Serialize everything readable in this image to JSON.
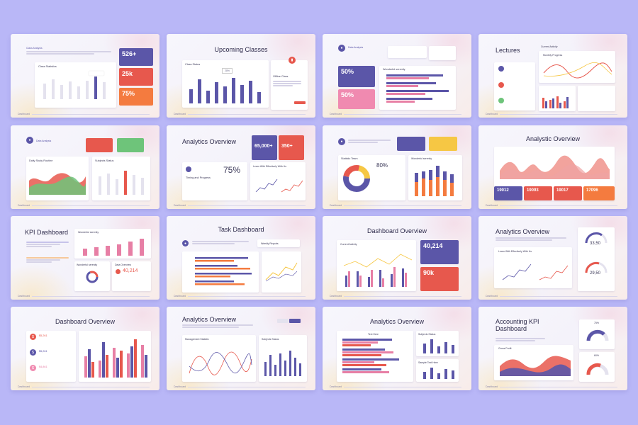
{
  "slides": {
    "s1": {
      "header_small": "Class Analysis",
      "chart_title": "Class Statistics",
      "stat1": "526+",
      "stat2": "25k",
      "stat3": "75%",
      "footer": "Dashboard"
    },
    "s2": {
      "title": "Upcoming Classes",
      "chart_title": "Class Status",
      "badge": "28%",
      "side_title": "Offline Class",
      "footer": "Dashboard"
    },
    "s3": {
      "header_small": "Data Analysis",
      "stat1": "50%",
      "stat2": "50%",
      "chart_title": "Wonderful serenity",
      "footer": "Dashboard"
    },
    "s4": {
      "title": "Lectures",
      "side_title": "Current Activity",
      "chart_title": "Monthly Progress",
      "footer": "Dashboard"
    },
    "s5": {
      "header_small": "Data Analysis",
      "chart1_title": "Daily Study Routine",
      "chart2_title": "Subjects Status",
      "footer": "Dashboard"
    },
    "s6": {
      "title": "Analytics Overview",
      "stat1": "65,000+",
      "stat2": "350+",
      "big": "75%",
      "sub_title": "Timing and Progress",
      "chart_title": "Learn With Effectively With Us",
      "footer": "Dashboard"
    },
    "s7": {
      "chart1_title": "Statistic Team",
      "percent": "80%",
      "chart2_title": "Wonderful serenity",
      "footer": "Dashboard"
    },
    "s8": {
      "title": "Analystic Overview",
      "stat1": "19012",
      "stat2": "19093",
      "stat3": "19017",
      "stat4": "17096",
      "footer": "Dashboard"
    },
    "s9": {
      "title": "KPI Dashboard",
      "chart1_title": "Wonderful serenity",
      "chart2_title": "Wonderful serenity",
      "chart3_title": "Data Overview",
      "stat": "40,214",
      "footer": "Dashboard"
    },
    "s10": {
      "title": "Task Dashboard",
      "side_title": "Weekly Reports",
      "footer": "Dashboard"
    },
    "s11": {
      "title": "Dashboard Overview",
      "chart_title": "Current Activity",
      "stat1": "40,214",
      "stat2": "90k",
      "footer": "Dashboard"
    },
    "s12": {
      "title": "Analytics Overview",
      "chart_title": "Learn With Effectively With Us",
      "g1": "33,50",
      "g2": "29,50",
      "footer": "Dashboard"
    },
    "s13": {
      "title": "Dashboard Overview",
      "v1": "$5,261",
      "v2": "$5,261",
      "v3": "$4,861",
      "footer": "Dashboard"
    },
    "s14": {
      "title": "Analytics Overview",
      "chart1_title": "Management Statistic",
      "chart2_title": "Subjects Status",
      "footer": "Dashboard"
    },
    "s15": {
      "title": "Analytics Overview",
      "chart1_title": "Text Here",
      "chart2_title": "Subjects Status",
      "chart3_title": "Sample Text Here",
      "footer": "Dashboard"
    },
    "s16": {
      "title": "Accounting KPI Dashboard",
      "chart_title": "Gross Profit",
      "g1": "75%",
      "g2": "60%",
      "footer": "Dashboard"
    }
  },
  "colors": {
    "purple": "#5b56a8",
    "red": "#e7584d",
    "orange": "#f47b3f",
    "pink": "#f08ab0",
    "background": "#b9b7f7"
  }
}
